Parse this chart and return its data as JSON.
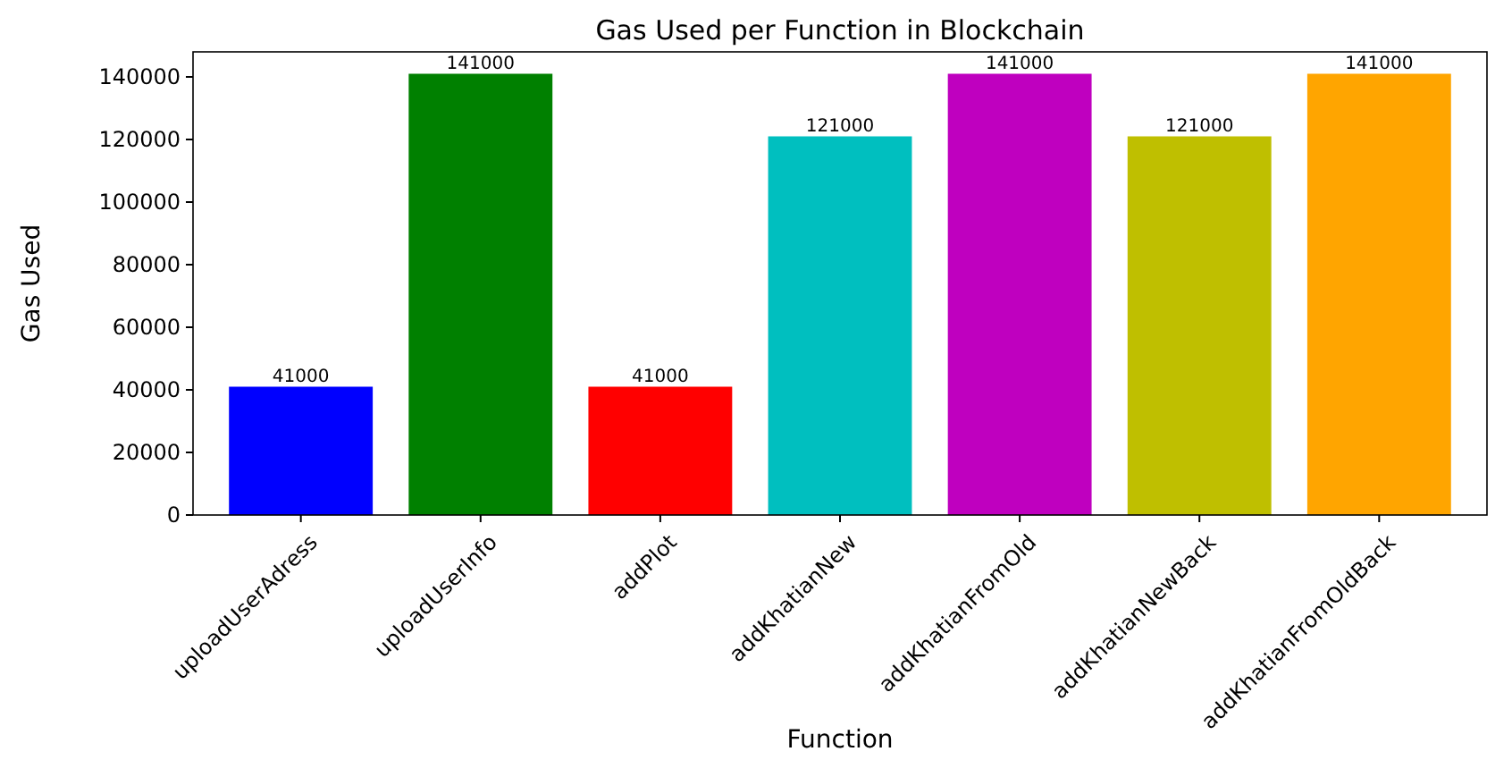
{
  "chart_data": {
    "type": "bar",
    "title": "Gas Used per Function in Blockchain",
    "xlabel": "Function",
    "ylabel": "Gas Used",
    "categories": [
      "uploadUserAdress",
      "uploadUserInfo",
      "addPlot",
      "addKhatianNew",
      "addKhatianFromOld",
      "addKhatianNewBack",
      "addKhatianFromOldBack"
    ],
    "values": [
      41000,
      141000,
      41000,
      121000,
      141000,
      121000,
      141000
    ],
    "colors": [
      "#0000ff",
      "#008000",
      "#ff0000",
      "#00bfbf",
      "#bf00bf",
      "#bfbf00",
      "#ffa500"
    ],
    "ylim": [
      0,
      148000
    ],
    "yticks": [
      0,
      20000,
      40000,
      60000,
      80000,
      100000,
      120000,
      140000
    ],
    "data_labels": true
  }
}
